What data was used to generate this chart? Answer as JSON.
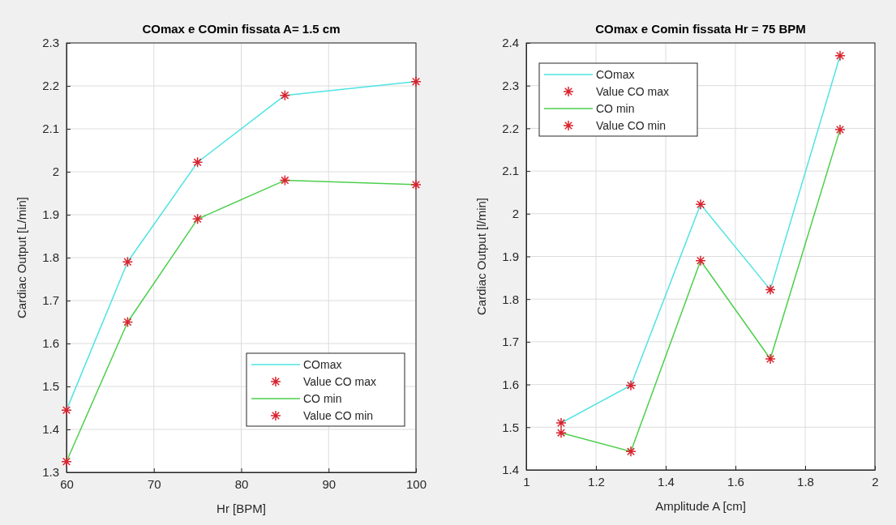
{
  "chart_data": [
    {
      "type": "line",
      "title": "COmax e COmin fissata A= 1.5 cm",
      "xlabel": "Hr [BPM]",
      "ylabel": "Cardiac Output  [L/min]",
      "x": [
        60,
        67,
        75,
        85,
        100
      ],
      "xlim": [
        60,
        100
      ],
      "xticks": [
        60,
        70,
        80,
        90,
        100
      ],
      "ylim": [
        1.3,
        2.3
      ],
      "yticks": [
        1.3,
        1.4,
        1.5,
        1.6,
        1.7,
        1.8,
        1.9,
        2,
        2.1,
        2.2,
        2.3
      ],
      "grid": true,
      "legend": "bottom right",
      "series": [
        {
          "name": "COmax",
          "type": "line",
          "marker": "none",
          "color": "#4fe3e3",
          "values": [
            1.445,
            1.79,
            2.022,
            2.178,
            2.21
          ]
        },
        {
          "name": "Value CO max",
          "type": "scatter",
          "marker": "cross",
          "color": "#d9232e",
          "values": [
            1.445,
            1.79,
            2.022,
            2.178,
            2.21
          ]
        },
        {
          "name": "CO min",
          "type": "line",
          "marker": "none",
          "color": "#4ccf4c",
          "values": [
            1.325,
            1.65,
            1.89,
            1.98,
            1.97
          ]
        },
        {
          "name": "Value CO min",
          "type": "scatter",
          "marker": "cross",
          "color": "#d9232e",
          "values": [
            1.325,
            1.65,
            1.89,
            1.98,
            1.97
          ]
        }
      ]
    },
    {
      "type": "line",
      "title": "COmax e Comin fissata Hr = 75 BPM",
      "xlabel": "Amplitude A [cm]",
      "ylabel": "Cardiac Output [l/min]",
      "x": [
        1.1,
        1.3,
        1.5,
        1.7,
        1.9
      ],
      "xlim": [
        1,
        2
      ],
      "xticks": [
        1,
        1.2,
        1.4,
        1.6,
        1.8,
        2
      ],
      "ylim": [
        1.4,
        2.4
      ],
      "yticks": [
        1.4,
        1.5,
        1.6,
        1.7,
        1.8,
        1.9,
        2,
        2.1,
        2.2,
        2.3,
        2.4
      ],
      "grid": true,
      "legend": "top left",
      "series": [
        {
          "name": "COmax",
          "type": "line",
          "marker": "none",
          "color": "#4fe3e3",
          "values": [
            1.51,
            1.598,
            2.022,
            1.822,
            2.37
          ]
        },
        {
          "name": "Value CO max",
          "type": "scatter",
          "marker": "cross",
          "color": "#d9232e",
          "values": [
            1.51,
            1.598,
            2.022,
            1.822,
            2.37
          ]
        },
        {
          "name": "CO min",
          "type": "line",
          "marker": "none",
          "color": "#4ccf4c",
          "values": [
            1.487,
            1.443,
            1.89,
            1.66,
            2.197
          ]
        },
        {
          "name": "Value CO min",
          "type": "scatter",
          "marker": "cross",
          "color": "#d9232e",
          "values": [
            1.487,
            1.443,
            1.89,
            1.66,
            2.197
          ]
        }
      ]
    }
  ]
}
